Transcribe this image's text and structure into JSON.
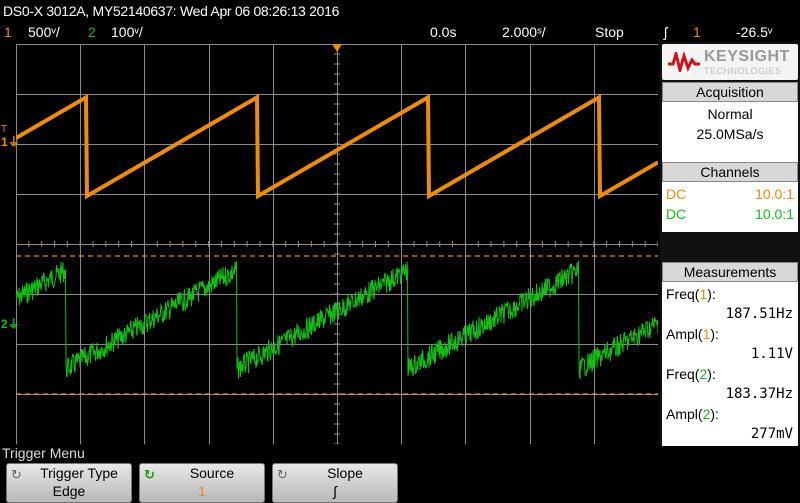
{
  "header": {
    "title": "DS0-X 3012A, MY52140637: Wed Apr 06 08:26:13 2016",
    "ch1_num": "1",
    "ch1_scale": "500ᵛ/",
    "ch2_num": "2",
    "ch2_scale": "100ᵛ/",
    "time_pos": "0.0s",
    "time_scale": "2.000ˢ/",
    "run_state": "Stop",
    "trigger_slope_icon": "rising-edge-icon",
    "trigger_slope_glyph": "ʃ",
    "trigger_source": "1",
    "trigger_level": "-26.5ᵛ"
  },
  "colors": {
    "ch1": "#f08c00",
    "ch2": "#11c011",
    "grid": "#8a8a8a"
  },
  "markers": {
    "ch1_marker": "1",
    "ch2_marker": "2"
  },
  "panel": {
    "logo_brand": "KEYSIGHT",
    "logo_sub": "TECHNOLOGIES",
    "acquisition": {
      "title": "Acquisition",
      "mode": "Normal",
      "rate": "25.0MSa/s"
    },
    "channels": {
      "title": "Channels",
      "rows": [
        {
          "coupling": "DC",
          "probe": "10.0:1"
        },
        {
          "coupling": "DC",
          "probe": "10.0:1"
        }
      ]
    },
    "measurements": {
      "title": "Measurements",
      "items": [
        {
          "label": "Freq(",
          "ch": "1",
          "close": "):",
          "value": "187.51Hz"
        },
        {
          "label": "Ampl(",
          "ch": "1",
          "close": "):",
          "value": "1.11V"
        },
        {
          "label": "Freq(",
          "ch": "2",
          "close": "):",
          "value": "183.37Hz"
        },
        {
          "label": "Ampl(",
          "ch": "2",
          "close": "):",
          "value": "277mV"
        }
      ]
    }
  },
  "menu": {
    "title": "Trigger Menu",
    "keys": [
      {
        "label": "Trigger Type",
        "value": "Edge"
      },
      {
        "label": "Source",
        "value": "1"
      },
      {
        "label": "Slope",
        "value": "ʃ"
      }
    ]
  }
}
